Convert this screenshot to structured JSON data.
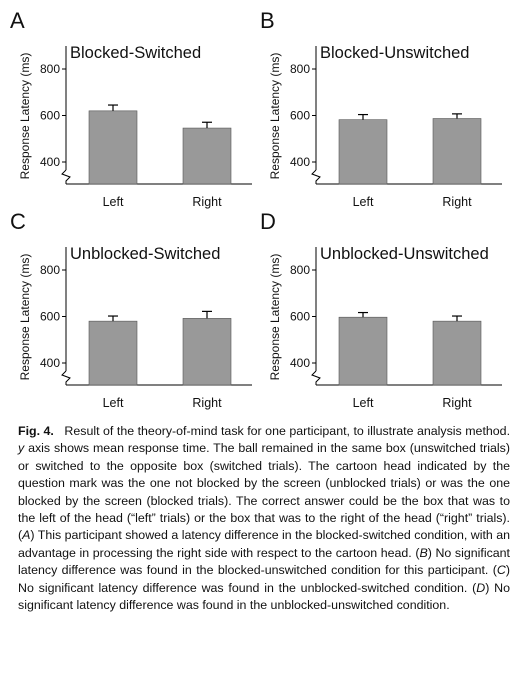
{
  "panels": [
    {
      "letter": "A",
      "title": "Blocked-Switched",
      "ylabel": "Response Latency (ms)",
      "categories": [
        "Left",
        "Right"
      ],
      "values": [
        620,
        546
      ],
      "errors": [
        25,
        25
      ]
    },
    {
      "letter": "B",
      "title": "Blocked-Unswitched",
      "ylabel": "Response Latency (ms)",
      "categories": [
        "Left",
        "Right"
      ],
      "values": [
        582,
        587
      ],
      "errors": [
        22,
        20
      ]
    },
    {
      "letter": "C",
      "title": "Unblocked-Switched",
      "ylabel": "Response Latency (ms)",
      "categories": [
        "Left",
        "Right"
      ],
      "values": [
        580,
        592
      ],
      "errors": [
        22,
        30
      ]
    },
    {
      "letter": "D",
      "title": "Unblocked-Unswitched",
      "ylabel": "Response Latency (ms)",
      "categories": [
        "Left",
        "Right"
      ],
      "values": [
        597,
        580
      ],
      "errors": [
        20,
        22
      ]
    }
  ],
  "chart_data": [
    {
      "type": "bar",
      "title": "Blocked-Switched",
      "ylabel": "Response Latency (ms)",
      "categories": [
        "Left",
        "Right"
      ],
      "values": [
        620,
        546
      ],
      "errors": [
        25,
        25
      ],
      "yticks": [
        400,
        600,
        800
      ],
      "ylim": [
        350,
        850
      ],
      "axis_break": true
    },
    {
      "type": "bar",
      "title": "Blocked-Unswitched",
      "ylabel": "Response Latency (ms)",
      "categories": [
        "Left",
        "Right"
      ],
      "values": [
        582,
        587
      ],
      "errors": [
        22,
        20
      ],
      "yticks": [
        400,
        600,
        800
      ],
      "ylim": [
        350,
        850
      ],
      "axis_break": true
    },
    {
      "type": "bar",
      "title": "Unblocked-Switched",
      "ylabel": "Response Latency (ms)",
      "categories": [
        "Left",
        "Right"
      ],
      "values": [
        580,
        592
      ],
      "errors": [
        22,
        30
      ],
      "yticks": [
        400,
        600,
        800
      ],
      "ylim": [
        350,
        850
      ],
      "axis_break": true
    },
    {
      "type": "bar",
      "title": "Unblocked-Unswitched",
      "ylabel": "Response Latency (ms)",
      "categories": [
        "Left",
        "Right"
      ],
      "values": [
        597,
        580
      ],
      "errors": [
        20,
        22
      ],
      "yticks": [
        400,
        600,
        800
      ],
      "ylim": [
        350,
        850
      ],
      "axis_break": true
    }
  ],
  "colors": {
    "bar": "#999999",
    "axis": "#000000"
  },
  "caption": {
    "label": "Fig. 4.",
    "s1": "Result of the theory-of-mind task for one participant, to illustrate analysis method. ",
    "y_italic": "y",
    "s2": " axis shows mean response time. The ball remained in the same box (unswitched trials) or switched to the opposite box (switched trials). The cartoon head indicated by the question mark was the one not blocked by the screen (unblocked trials) or was the one blocked by the screen (blocked trials). The correct answer could be the box that was to the left of the head (“left” trials) or the box that was to the right of the head (“right” trials). (",
    "A": "A",
    "s3": ") This participant showed a latency difference in the blocked-switched condition, with an advantage in processing the right side with respect to the cartoon head. (",
    "B": "B",
    "s4": ") No significant latency difference was found in the blocked-unswitched condition for this participant. (",
    "C": "C",
    "s5": ") No significant latency difference was found in the unblocked-switched condition. (",
    "D": "D",
    "s6": ") No significant latency difference was found in the unblocked-unswitched condition."
  }
}
